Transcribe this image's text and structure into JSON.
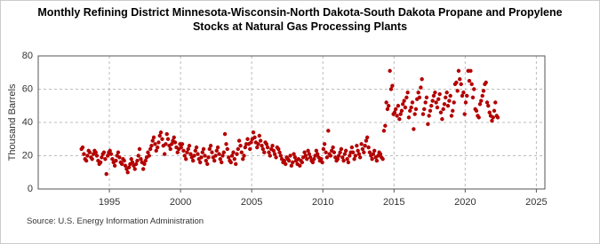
{
  "chart_data": {
    "type": "scatter",
    "title": "Monthly Refining District Minnesota-Wisconsin-North Dakota-South Dakota Propane and Propylene Stocks at Natural Gas Processing Plants",
    "y_label": "Thousand Barrels",
    "source": "Source: U.S. Energy Information Administration",
    "color": "#b30000",
    "grid": true,
    "xlim": [
      1990,
      2025.6
    ],
    "xticks": [
      1995,
      2000,
      2005,
      2010,
      2015,
      2020,
      2025
    ],
    "ylim": [
      0,
      80
    ],
    "yticks": [
      0,
      20,
      40,
      60,
      80
    ],
    "x": [
      1993.04,
      1993.12,
      1993.21,
      1993.29,
      1993.38,
      1993.46,
      1993.54,
      1993.62,
      1993.71,
      1993.79,
      1993.88,
      1993.96,
      1994.04,
      1994.12,
      1994.21,
      1994.29,
      1994.38,
      1994.46,
      1994.54,
      1994.62,
      1994.71,
      1994.79,
      1994.88,
      1994.96,
      1995.04,
      1995.12,
      1995.21,
      1995.29,
      1995.38,
      1995.46,
      1995.54,
      1995.62,
      1995.71,
      1995.79,
      1995.88,
      1995.96,
      1996.04,
      1996.12,
      1996.21,
      1996.29,
      1996.38,
      1996.46,
      1996.54,
      1996.62,
      1996.71,
      1996.79,
      1996.88,
      1996.96,
      1997.04,
      1997.12,
      1997.21,
      1997.29,
      1997.38,
      1997.46,
      1997.54,
      1997.62,
      1997.71,
      1997.79,
      1997.88,
      1997.96,
      1998.04,
      1998.12,
      1998.21,
      1998.29,
      1998.38,
      1998.46,
      1998.54,
      1998.62,
      1998.71,
      1998.79,
      1998.88,
      1998.96,
      1999.04,
      1999.12,
      1999.21,
      1999.29,
      1999.38,
      1999.46,
      1999.54,
      1999.62,
      1999.71,
      1999.79,
      1999.88,
      1999.96,
      2000.04,
      2000.12,
      2000.21,
      2000.29,
      2000.38,
      2000.46,
      2000.54,
      2000.62,
      2000.71,
      2000.79,
      2000.88,
      2000.96,
      2001.04,
      2001.12,
      2001.21,
      2001.29,
      2001.38,
      2001.46,
      2001.54,
      2001.62,
      2001.71,
      2001.79,
      2001.88,
      2001.96,
      2002.04,
      2002.12,
      2002.21,
      2002.29,
      2002.38,
      2002.46,
      2002.54,
      2002.62,
      2002.71,
      2002.79,
      2002.88,
      2002.96,
      2003.04,
      2003.12,
      2003.21,
      2003.29,
      2003.38,
      2003.46,
      2003.54,
      2003.62,
      2003.71,
      2003.79,
      2003.88,
      2003.96,
      2004.04,
      2004.12,
      2004.21,
      2004.29,
      2004.38,
      2004.46,
      2004.54,
      2004.62,
      2004.71,
      2004.79,
      2004.88,
      2004.96,
      2005.04,
      2005.12,
      2005.21,
      2005.29,
      2005.38,
      2005.46,
      2005.54,
      2005.62,
      2005.71,
      2005.79,
      2005.88,
      2005.96,
      2006.04,
      2006.12,
      2006.21,
      2006.29,
      2006.38,
      2006.46,
      2006.54,
      2006.62,
      2006.71,
      2006.79,
      2006.88,
      2006.96,
      2007.04,
      2007.12,
      2007.21,
      2007.29,
      2007.38,
      2007.46,
      2007.54,
      2007.62,
      2007.71,
      2007.79,
      2007.88,
      2007.96,
      2008.04,
      2008.12,
      2008.21,
      2008.29,
      2008.38,
      2008.46,
      2008.54,
      2008.62,
      2008.71,
      2008.79,
      2008.88,
      2008.96,
      2009.04,
      2009.12,
      2009.21,
      2009.29,
      2009.38,
      2009.46,
      2009.54,
      2009.62,
      2009.71,
      2009.79,
      2009.88,
      2009.96,
      2010.04,
      2010.12,
      2010.21,
      2010.29,
      2010.38,
      2010.46,
      2010.54,
      2010.62,
      2010.71,
      2010.79,
      2010.88,
      2010.96,
      2011.04,
      2011.12,
      2011.21,
      2011.29,
      2011.38,
      2011.46,
      2011.54,
      2011.62,
      2011.71,
      2011.79,
      2011.88,
      2011.96,
      2012.04,
      2012.12,
      2012.21,
      2012.29,
      2012.38,
      2012.46,
      2012.54,
      2012.62,
      2012.71,
      2012.79,
      2012.88,
      2012.96,
      2013.04,
      2013.12,
      2013.21,
      2013.29,
      2013.38,
      2013.46,
      2013.54,
      2013.62,
      2013.71,
      2013.79,
      2013.88,
      2013.96,
      2014.04,
      2014.12,
      2014.21,
      2014.29,
      2014.38,
      2014.46,
      2014.54,
      2014.62,
      2014.71,
      2014.79,
      2014.88,
      2014.96,
      2015.04,
      2015.12,
      2015.21,
      2015.29,
      2015.38,
      2015.46,
      2015.54,
      2015.62,
      2015.71,
      2015.79,
      2015.88,
      2015.96,
      2016.04,
      2016.12,
      2016.21,
      2016.29,
      2016.38,
      2016.46,
      2016.54,
      2016.62,
      2016.71,
      2016.79,
      2016.88,
      2016.96,
      2017.04,
      2017.12,
      2017.21,
      2017.29,
      2017.38,
      2017.46,
      2017.54,
      2017.62,
      2017.71,
      2017.79,
      2017.88,
      2017.96,
      2018.04,
      2018.12,
      2018.21,
      2018.29,
      2018.38,
      2018.46,
      2018.54,
      2018.62,
      2018.71,
      2018.79,
      2018.88,
      2018.96,
      2019.04,
      2019.12,
      2019.21,
      2019.29,
      2019.38,
      2019.46,
      2019.54,
      2019.62,
      2019.71,
      2019.79,
      2019.88,
      2019.96,
      2020.04,
      2020.12,
      2020.21,
      2020.29,
      2020.38,
      2020.46,
      2020.54,
      2020.62,
      2020.71,
      2020.79,
      2020.88,
      2020.96,
      2021.04,
      2021.12,
      2021.21,
      2021.29,
      2021.38,
      2021.46,
      2021.54,
      2021.62,
      2021.71,
      2021.79,
      2021.88,
      2021.96,
      2022.04,
      2022.12,
      2022.21,
      2022.29
    ],
    "values": [
      24,
      25,
      21,
      18,
      17,
      20,
      23,
      22,
      19,
      18,
      21,
      23,
      22,
      20,
      17,
      15,
      16,
      19,
      21,
      22,
      18,
      9,
      20,
      22,
      23,
      21,
      18,
      16,
      14,
      17,
      20,
      22,
      19,
      16,
      15,
      18,
      17,
      14,
      12,
      10,
      13,
      15,
      18,
      16,
      14,
      12,
      15,
      17,
      20,
      24,
      18,
      16,
      12,
      15,
      17,
      19,
      22,
      20,
      24,
      26,
      29,
      31,
      27,
      23,
      25,
      28,
      32,
      34,
      30,
      26,
      21,
      27,
      33,
      30,
      26,
      24,
      27,
      29,
      31,
      28,
      25,
      22,
      24,
      27,
      25,
      27,
      23,
      20,
      18,
      22,
      24,
      26,
      21,
      19,
      17,
      20,
      23,
      25,
      21,
      18,
      16,
      19,
      22,
      24,
      20,
      17,
      15,
      19,
      24,
      26,
      22,
      19,
      17,
      20,
      23,
      25,
      21,
      18,
      16,
      20,
      22,
      33,
      27,
      24,
      19,
      17,
      16,
      20,
      22,
      18,
      15,
      21,
      24,
      29,
      26,
      22,
      18,
      20,
      25,
      27,
      30,
      27,
      24,
      28,
      30,
      34,
      31,
      28,
      25,
      27,
      32,
      29,
      26,
      24,
      22,
      28,
      27,
      25,
      22,
      20,
      24,
      26,
      23,
      21,
      19,
      25,
      24,
      22,
      20,
      18,
      16,
      17,
      15,
      19,
      18,
      17,
      20,
      14,
      16,
      21,
      19,
      17,
      15,
      18,
      14,
      17,
      16,
      19,
      22,
      20,
      18,
      23,
      21,
      19,
      17,
      16,
      18,
      20,
      23,
      21,
      19,
      17,
      18,
      16,
      24,
      27,
      22,
      19,
      35,
      21,
      20,
      23,
      25,
      22,
      19,
      17,
      18,
      20,
      22,
      24,
      19,
      17,
      21,
      23,
      18,
      16,
      20,
      22,
      25,
      22,
      18,
      20,
      26,
      23,
      21,
      19,
      27,
      24,
      22,
      26,
      29,
      31,
      25,
      22,
      20,
      18,
      21,
      23,
      19,
      17,
      20,
      22,
      21,
      19,
      18,
      35,
      38,
      52,
      48,
      50,
      71,
      60,
      62,
      45,
      46,
      48,
      44,
      50,
      42,
      45,
      47,
      51,
      53,
      49,
      55,
      58,
      43,
      47,
      49,
      52,
      36,
      45,
      48,
      54,
      58,
      55,
      61,
      66,
      45,
      48,
      52,
      55,
      39,
      44,
      47,
      50,
      53,
      56,
      58,
      52,
      49,
      54,
      57,
      46,
      42,
      48,
      51,
      55,
      58,
      50,
      53,
      56,
      44,
      47,
      52,
      63,
      64,
      59,
      71,
      66,
      63,
      56,
      58,
      45,
      52,
      56,
      71,
      65,
      71,
      63,
      55,
      60,
      48,
      47,
      44,
      43,
      51,
      53,
      56,
      59,
      63,
      64,
      52,
      50,
      46,
      44,
      41,
      43,
      47,
      52,
      44,
      43
    ]
  }
}
